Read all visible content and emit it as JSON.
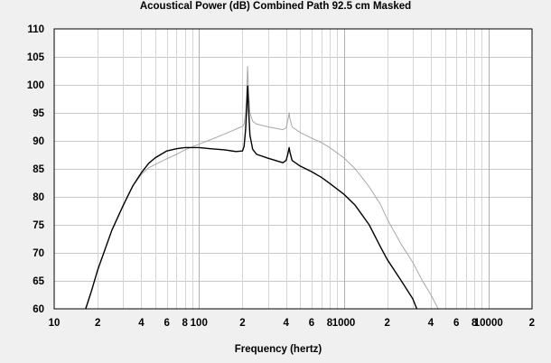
{
  "chart_data": {
    "type": "line",
    "title": "Acoustical Power (dB)   Combined   Path 92.5 cm   Masked",
    "xlabel": "Frequency (hertz)",
    "ylabel": "",
    "xscale": "log",
    "xlim": [
      10,
      20000
    ],
    "ylim": [
      60,
      110
    ],
    "y_ticks": [
      60,
      65,
      70,
      75,
      80,
      85,
      90,
      95,
      100,
      105,
      110
    ],
    "x_tick_labels": [
      {
        "x": 10,
        "label": "10"
      },
      {
        "x": 20,
        "label": "2"
      },
      {
        "x": 40,
        "label": "4"
      },
      {
        "x": 60,
        "label": "6"
      },
      {
        "x": 80,
        "label": "8"
      },
      {
        "x": 100,
        "label": "100"
      },
      {
        "x": 200,
        "label": "2"
      },
      {
        "x": 400,
        "label": "4"
      },
      {
        "x": 600,
        "label": "6"
      },
      {
        "x": 800,
        "label": "8"
      },
      {
        "x": 1000,
        "label": "1000"
      },
      {
        "x": 2000,
        "label": "2"
      },
      {
        "x": 4000,
        "label": "4"
      },
      {
        "x": 6000,
        "label": "6"
      },
      {
        "x": 8000,
        "label": "8"
      },
      {
        "x": 10000,
        "label": "10000"
      },
      {
        "x": 20000,
        "label": "2"
      }
    ],
    "grid": true,
    "series": [
      {
        "color": "#a8a8a8",
        "points": [
          [
            16.5,
            60
          ],
          [
            18,
            63
          ],
          [
            20,
            67
          ],
          [
            25,
            74
          ],
          [
            30,
            78.5
          ],
          [
            35,
            82
          ],
          [
            40,
            84
          ],
          [
            45,
            85.2
          ],
          [
            50,
            85.8
          ],
          [
            60,
            86.8
          ],
          [
            70,
            87.6
          ],
          [
            80,
            88.4
          ],
          [
            100,
            89.4
          ],
          [
            120,
            90.2
          ],
          [
            150,
            91.2
          ],
          [
            180,
            92.1
          ],
          [
            200,
            92.6
          ],
          [
            205,
            93
          ],
          [
            210,
            95
          ],
          [
            214,
            99
          ],
          [
            217,
            103.3
          ],
          [
            220,
            99
          ],
          [
            225,
            95
          ],
          [
            235,
            93.5
          ],
          [
            250,
            93
          ],
          [
            300,
            92.5
          ],
          [
            380,
            92
          ],
          [
            400,
            92.3
          ],
          [
            410,
            93.5
          ],
          [
            420,
            95
          ],
          [
            425,
            94
          ],
          [
            440,
            92.5
          ],
          [
            500,
            91.5
          ],
          [
            600,
            90.5
          ],
          [
            700,
            89.7
          ],
          [
            800,
            88.8
          ],
          [
            1000,
            87
          ],
          [
            1200,
            85
          ],
          [
            1500,
            81.8
          ],
          [
            1800,
            78.6
          ],
          [
            2000,
            76
          ],
          [
            2500,
            71.5
          ],
          [
            3000,
            68.3
          ],
          [
            3500,
            65
          ],
          [
            4000,
            62.5
          ],
          [
            4500,
            60
          ]
        ]
      },
      {
        "color": "#000000",
        "points": [
          [
            16.5,
            60
          ],
          [
            18,
            63
          ],
          [
            20,
            67
          ],
          [
            25,
            74
          ],
          [
            30,
            78.5
          ],
          [
            35,
            82
          ],
          [
            40,
            84.3
          ],
          [
            45,
            86
          ],
          [
            50,
            87
          ],
          [
            60,
            88.2
          ],
          [
            70,
            88.6
          ],
          [
            80,
            88.8
          ],
          [
            100,
            88.8
          ],
          [
            120,
            88.6
          ],
          [
            150,
            88.4
          ],
          [
            180,
            88.1
          ],
          [
            200,
            88.2
          ],
          [
            205,
            89
          ],
          [
            210,
            92
          ],
          [
            214,
            96
          ],
          [
            217,
            99.8
          ],
          [
            220,
            96
          ],
          [
            225,
            91
          ],
          [
            235,
            88.5
          ],
          [
            250,
            87.6
          ],
          [
            300,
            86.9
          ],
          [
            380,
            86.1
          ],
          [
            400,
            86.5
          ],
          [
            410,
            87.5
          ],
          [
            420,
            88.8
          ],
          [
            425,
            88
          ],
          [
            440,
            86.5
          ],
          [
            500,
            85.5
          ],
          [
            600,
            84.5
          ],
          [
            700,
            83.5
          ],
          [
            800,
            82.4
          ],
          [
            1000,
            80.5
          ],
          [
            1200,
            78.5
          ],
          [
            1500,
            75
          ],
          [
            1800,
            71
          ],
          [
            2000,
            68.8
          ],
          [
            2500,
            65
          ],
          [
            3000,
            61.8
          ],
          [
            3200,
            60
          ]
        ]
      }
    ]
  }
}
